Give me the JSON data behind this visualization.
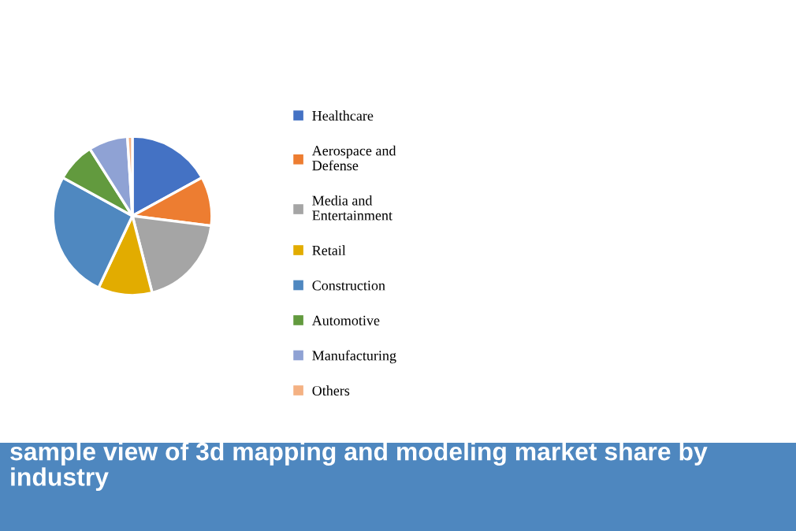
{
  "chart_data": {
    "type": "pie",
    "title": "sample view of 3d mapping and modeling market share by industry",
    "categories": [
      "Healthcare",
      "Aerospace and\nDefense",
      "Media and\nEntertainment",
      "Retail",
      "Construction",
      "Automotive",
      "Manufacturing",
      "Others"
    ],
    "values": [
      17,
      10,
      19,
      11,
      26,
      8,
      8,
      1
    ],
    "colors": [
      "#4472c4",
      "#ed7d31",
      "#a5a5a5",
      "#e2ac00",
      "#4f88c0",
      "#629a3e",
      "#8fa2d4",
      "#f4b183"
    ],
    "legend": "right"
  }
}
